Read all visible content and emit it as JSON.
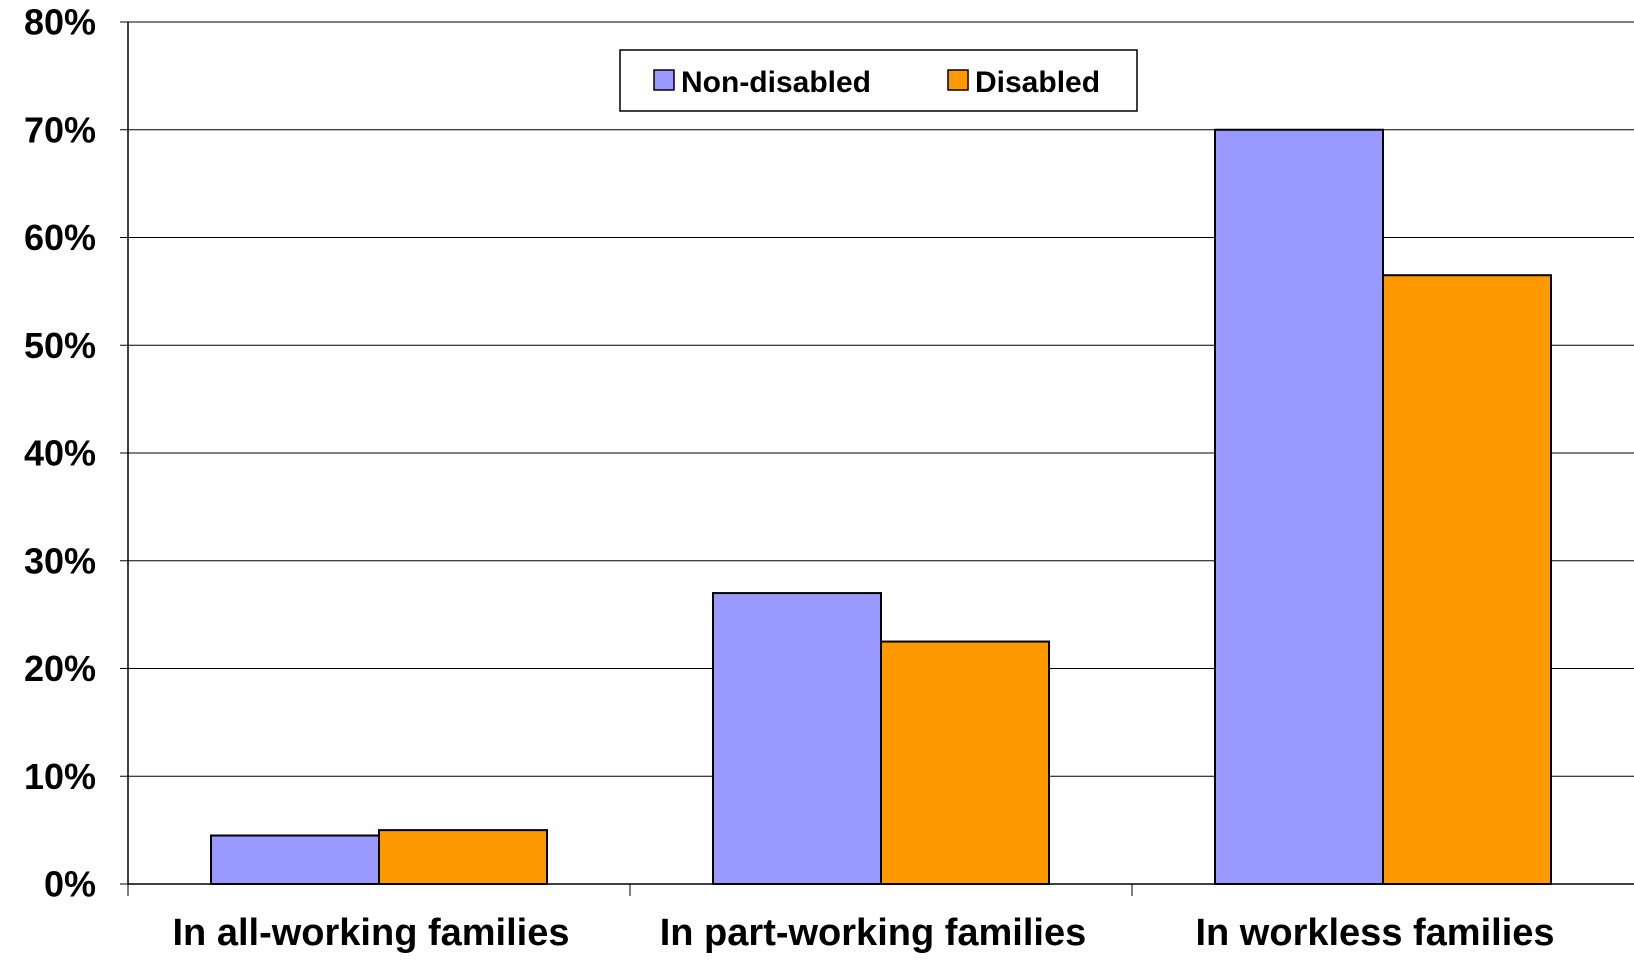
{
  "chart_data": {
    "type": "bar",
    "title": "",
    "xlabel": "",
    "ylabel": "",
    "categories": [
      "In all-working families",
      "In part-working families",
      "In workless families"
    ],
    "series": [
      {
        "name": "Non-disabled",
        "values": [
          4.5,
          27,
          70
        ],
        "color": "#9999FF"
      },
      {
        "name": "Disabled",
        "values": [
          5,
          22.5,
          56.5
        ],
        "color": "#FF9900"
      }
    ],
    "ylim": [
      0,
      80
    ],
    "yticks": [
      "0%",
      "10%",
      "20%",
      "30%",
      "40%",
      "50%",
      "60%",
      "70%",
      "80%"
    ],
    "grid": true,
    "legend": "top-center"
  }
}
